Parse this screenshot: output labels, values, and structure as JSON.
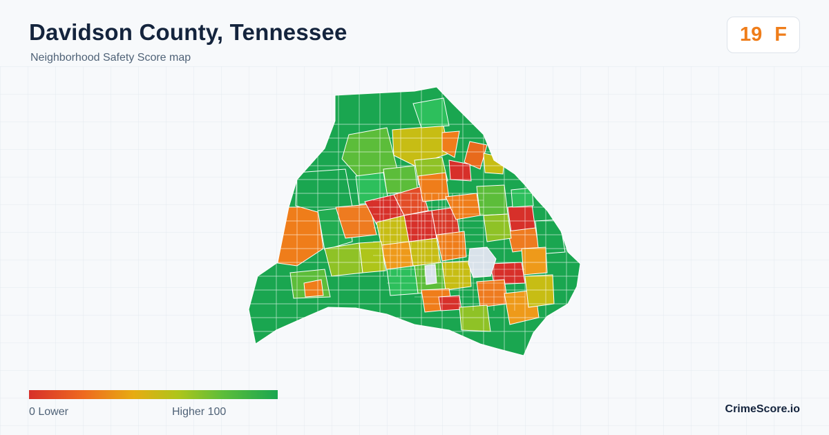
{
  "header": {
    "title": "Davidson County, Tennessee",
    "subtitle": "Neighborhood Safety Score map"
  },
  "score": {
    "value": "19",
    "grade": "F",
    "color": "#ef7d1a"
  },
  "legend": {
    "min_label": "0  Lower",
    "max_label": "Higher  100",
    "scale": [
      0,
      100
    ],
    "colors": [
      "#d7302a",
      "#ee6a1f",
      "#e7ab12",
      "#aec51a",
      "#5cbd3a",
      "#1aa650"
    ]
  },
  "map": {
    "region": "Davidson County",
    "colors": {
      "safe": "#1aa650",
      "mostly_safe": "#5cbd3a",
      "moderate": "#c7bd14",
      "elevated": "#ef7d1a",
      "high": "#d7302a",
      "no_data": "#d9e2ea",
      "boundary": "#ffffff"
    }
  },
  "footer": {
    "brand": "CrimeScore.io"
  }
}
